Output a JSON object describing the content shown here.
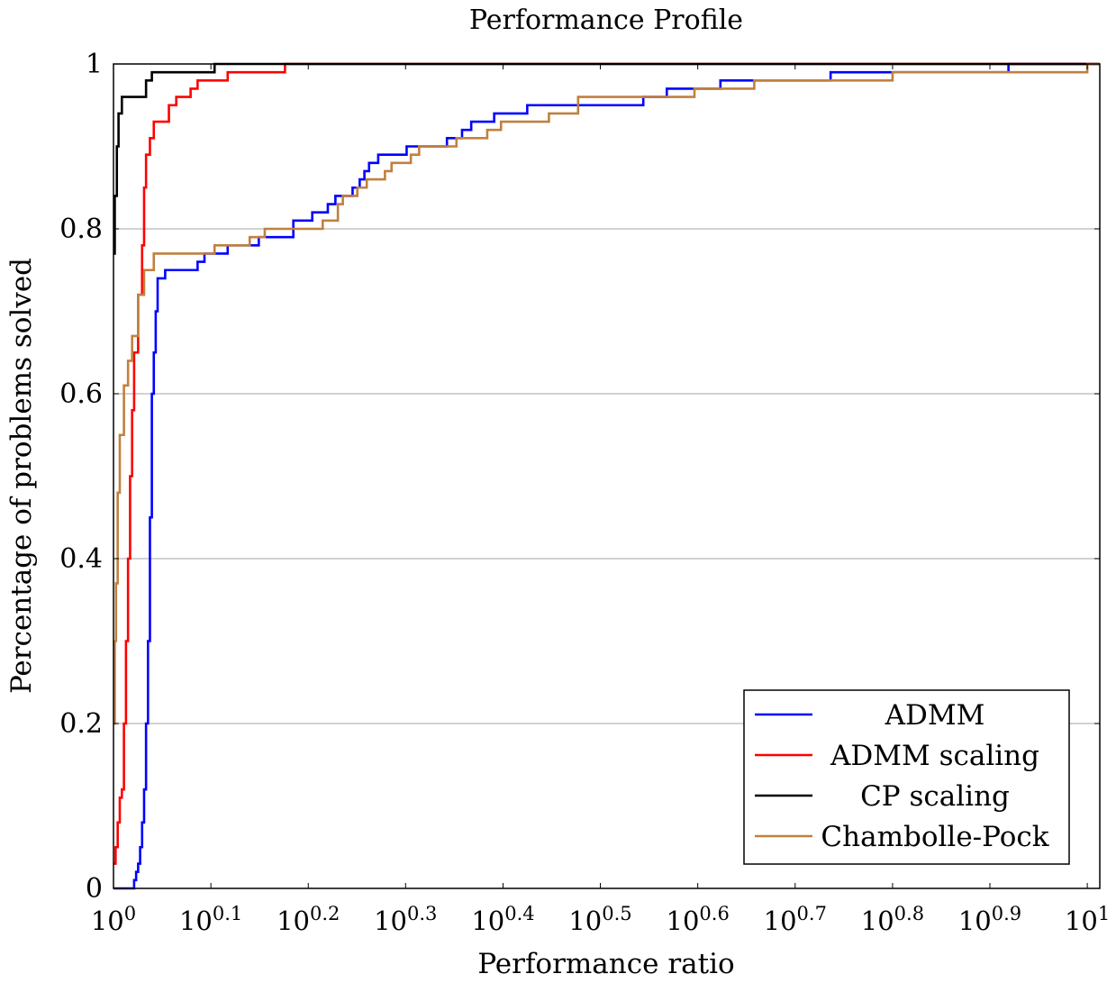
{
  "chart_data": {
    "type": "line",
    "title": "Performance Profile",
    "xlabel": "Performance ratio",
    "ylabel": "Percentage of problems solved",
    "x_scale": "log10",
    "xlim": [
      1,
      10.3
    ],
    "ylim": [
      0,
      1
    ],
    "x_ticks": [
      {
        "base": "10",
        "exp": "0"
      },
      {
        "base": "10",
        "exp": "0.1"
      },
      {
        "base": "10",
        "exp": "0.2"
      },
      {
        "base": "10",
        "exp": "0.3"
      },
      {
        "base": "10",
        "exp": "0.4"
      },
      {
        "base": "10",
        "exp": "0.5"
      },
      {
        "base": "10",
        "exp": "0.6"
      },
      {
        "base": "10",
        "exp": "0.7"
      },
      {
        "base": "10",
        "exp": "0.8"
      },
      {
        "base": "10",
        "exp": "0.9"
      },
      {
        "base": "10",
        "exp": "1"
      }
    ],
    "x_tick_values": [
      1,
      1.259,
      1.585,
      1.995,
      2.512,
      3.162,
      3.981,
      5.012,
      6.31,
      7.943,
      10
    ],
    "y_ticks": [
      "0",
      "0.2",
      "0.4",
      "0.6",
      "0.8",
      "1"
    ],
    "y_tick_values": [
      0,
      0.2,
      0.4,
      0.6,
      0.8,
      1
    ],
    "grid": "horizontal",
    "legend_position": "bottom-right",
    "series": [
      {
        "name": "ADMM",
        "color": "#0000ff",
        "step": true,
        "points": [
          [
            1.0,
            0.0
          ],
          [
            1.05,
            0.0
          ],
          [
            1.05,
            0.01
          ],
          [
            1.055,
            0.01
          ],
          [
            1.055,
            0.02
          ],
          [
            1.06,
            0.02
          ],
          [
            1.06,
            0.03
          ],
          [
            1.065,
            0.03
          ],
          [
            1.065,
            0.05
          ],
          [
            1.07,
            0.05
          ],
          [
            1.07,
            0.08
          ],
          [
            1.075,
            0.08
          ],
          [
            1.075,
            0.12
          ],
          [
            1.08,
            0.12
          ],
          [
            1.08,
            0.2
          ],
          [
            1.085,
            0.2
          ],
          [
            1.085,
            0.3
          ],
          [
            1.09,
            0.3
          ],
          [
            1.09,
            0.45
          ],
          [
            1.095,
            0.45
          ],
          [
            1.095,
            0.6
          ],
          [
            1.1,
            0.6
          ],
          [
            1.1,
            0.65
          ],
          [
            1.105,
            0.65
          ],
          [
            1.105,
            0.7
          ],
          [
            1.11,
            0.7
          ],
          [
            1.11,
            0.74
          ],
          [
            1.13,
            0.74
          ],
          [
            1.13,
            0.75
          ],
          [
            1.22,
            0.75
          ],
          [
            1.22,
            0.76
          ],
          [
            1.24,
            0.76
          ],
          [
            1.24,
            0.77
          ],
          [
            1.31,
            0.77
          ],
          [
            1.31,
            0.78
          ],
          [
            1.41,
            0.78
          ],
          [
            1.41,
            0.79
          ],
          [
            1.53,
            0.79
          ],
          [
            1.53,
            0.81
          ],
          [
            1.6,
            0.81
          ],
          [
            1.6,
            0.82
          ],
          [
            1.66,
            0.82
          ],
          [
            1.66,
            0.83
          ],
          [
            1.69,
            0.83
          ],
          [
            1.69,
            0.84
          ],
          [
            1.76,
            0.84
          ],
          [
            1.76,
            0.85
          ],
          [
            1.79,
            0.85
          ],
          [
            1.79,
            0.86
          ],
          [
            1.81,
            0.86
          ],
          [
            1.81,
            0.87
          ],
          [
            1.83,
            0.87
          ],
          [
            1.83,
            0.88
          ],
          [
            1.87,
            0.88
          ],
          [
            1.87,
            0.89
          ],
          [
            2.0,
            0.89
          ],
          [
            2.0,
            0.9
          ],
          [
            2.2,
            0.9
          ],
          [
            2.2,
            0.91
          ],
          [
            2.28,
            0.91
          ],
          [
            2.28,
            0.92
          ],
          [
            2.33,
            0.92
          ],
          [
            2.33,
            0.93
          ],
          [
            2.46,
            0.93
          ],
          [
            2.46,
            0.94
          ],
          [
            2.66,
            0.94
          ],
          [
            2.66,
            0.95
          ],
          [
            3.5,
            0.95
          ],
          [
            3.5,
            0.96
          ],
          [
            3.7,
            0.96
          ],
          [
            3.7,
            0.97
          ],
          [
            4.2,
            0.97
          ],
          [
            4.2,
            0.98
          ],
          [
            5.45,
            0.98
          ],
          [
            5.45,
            0.99
          ],
          [
            8.3,
            0.99
          ],
          [
            8.3,
            1.0
          ],
          [
            10.3,
            1.0
          ]
        ]
      },
      {
        "name": "ADMM scaling",
        "color": "#ff0000",
        "step": true,
        "points": [
          [
            1.0,
            0.03
          ],
          [
            1.005,
            0.03
          ],
          [
            1.005,
            0.05
          ],
          [
            1.01,
            0.05
          ],
          [
            1.01,
            0.08
          ],
          [
            1.015,
            0.08
          ],
          [
            1.015,
            0.11
          ],
          [
            1.02,
            0.11
          ],
          [
            1.02,
            0.12
          ],
          [
            1.025,
            0.12
          ],
          [
            1.025,
            0.2
          ],
          [
            1.03,
            0.2
          ],
          [
            1.03,
            0.3
          ],
          [
            1.035,
            0.3
          ],
          [
            1.035,
            0.4
          ],
          [
            1.04,
            0.4
          ],
          [
            1.04,
            0.5
          ],
          [
            1.045,
            0.5
          ],
          [
            1.045,
            0.58
          ],
          [
            1.05,
            0.58
          ],
          [
            1.05,
            0.65
          ],
          [
            1.06,
            0.65
          ],
          [
            1.06,
            0.72
          ],
          [
            1.07,
            0.72
          ],
          [
            1.07,
            0.78
          ],
          [
            1.075,
            0.78
          ],
          [
            1.075,
            0.85
          ],
          [
            1.08,
            0.85
          ],
          [
            1.08,
            0.89
          ],
          [
            1.09,
            0.89
          ],
          [
            1.09,
            0.91
          ],
          [
            1.1,
            0.91
          ],
          [
            1.1,
            0.93
          ],
          [
            1.14,
            0.93
          ],
          [
            1.14,
            0.95
          ],
          [
            1.16,
            0.95
          ],
          [
            1.16,
            0.96
          ],
          [
            1.2,
            0.96
          ],
          [
            1.2,
            0.97
          ],
          [
            1.22,
            0.97
          ],
          [
            1.22,
            0.98
          ],
          [
            1.31,
            0.98
          ],
          [
            1.31,
            0.99
          ],
          [
            1.5,
            0.99
          ],
          [
            1.5,
            1.0
          ],
          [
            10.3,
            1.0
          ]
        ]
      },
      {
        "name": "CP scaling",
        "color": "#000000",
        "step": true,
        "points": [
          [
            1.0,
            0.77
          ],
          [
            1.003,
            0.77
          ],
          [
            1.003,
            0.84
          ],
          [
            1.008,
            0.84
          ],
          [
            1.008,
            0.9
          ],
          [
            1.012,
            0.9
          ],
          [
            1.012,
            0.94
          ],
          [
            1.02,
            0.94
          ],
          [
            1.02,
            0.96
          ],
          [
            1.08,
            0.96
          ],
          [
            1.08,
            0.98
          ],
          [
            1.095,
            0.98
          ],
          [
            1.095,
            0.99
          ],
          [
            1.27,
            0.99
          ],
          [
            1.27,
            1.0
          ],
          [
            10.3,
            1.0
          ]
        ]
      },
      {
        "name": "Chambolle-Pock",
        "color": "#c08040",
        "step": true,
        "points": [
          [
            1.0,
            0.2
          ],
          [
            1.003,
            0.2
          ],
          [
            1.003,
            0.3
          ],
          [
            1.006,
            0.3
          ],
          [
            1.006,
            0.37
          ],
          [
            1.01,
            0.37
          ],
          [
            1.01,
            0.48
          ],
          [
            1.015,
            0.48
          ],
          [
            1.015,
            0.55
          ],
          [
            1.025,
            0.55
          ],
          [
            1.025,
            0.61
          ],
          [
            1.035,
            0.61
          ],
          [
            1.035,
            0.64
          ],
          [
            1.045,
            0.64
          ],
          [
            1.045,
            0.67
          ],
          [
            1.06,
            0.67
          ],
          [
            1.06,
            0.72
          ],
          [
            1.075,
            0.72
          ],
          [
            1.075,
            0.75
          ],
          [
            1.1,
            0.75
          ],
          [
            1.1,
            0.77
          ],
          [
            1.27,
            0.77
          ],
          [
            1.27,
            0.78
          ],
          [
            1.38,
            0.78
          ],
          [
            1.38,
            0.79
          ],
          [
            1.43,
            0.79
          ],
          [
            1.43,
            0.8
          ],
          [
            1.64,
            0.8
          ],
          [
            1.64,
            0.81
          ],
          [
            1.7,
            0.81
          ],
          [
            1.7,
            0.83
          ],
          [
            1.72,
            0.83
          ],
          [
            1.72,
            0.84
          ],
          [
            1.78,
            0.84
          ],
          [
            1.78,
            0.85
          ],
          [
            1.82,
            0.85
          ],
          [
            1.82,
            0.86
          ],
          [
            1.9,
            0.86
          ],
          [
            1.9,
            0.87
          ],
          [
            1.93,
            0.87
          ],
          [
            1.93,
            0.88
          ],
          [
            2.02,
            0.88
          ],
          [
            2.02,
            0.89
          ],
          [
            2.06,
            0.89
          ],
          [
            2.06,
            0.9
          ],
          [
            2.25,
            0.9
          ],
          [
            2.25,
            0.91
          ],
          [
            2.42,
            0.91
          ],
          [
            2.42,
            0.92
          ],
          [
            2.5,
            0.92
          ],
          [
            2.5,
            0.93
          ],
          [
            2.8,
            0.93
          ],
          [
            2.8,
            0.94
          ],
          [
            3.0,
            0.94
          ],
          [
            3.0,
            0.96
          ],
          [
            3.95,
            0.96
          ],
          [
            3.95,
            0.97
          ],
          [
            4.55,
            0.97
          ],
          [
            4.55,
            0.98
          ],
          [
            6.31,
            0.98
          ],
          [
            6.31,
            0.99
          ],
          [
            10.0,
            0.99
          ],
          [
            10.0,
            1.0
          ],
          [
            10.3,
            1.0
          ]
        ]
      }
    ]
  }
}
